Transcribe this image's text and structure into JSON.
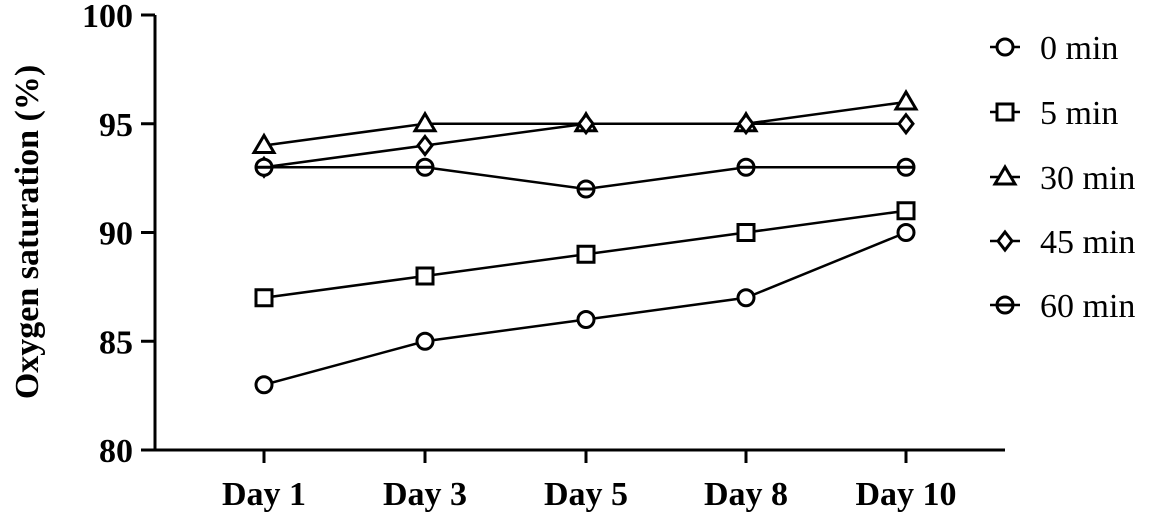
{
  "chart_data": {
    "type": "line",
    "title": "",
    "xlabel": "",
    "ylabel": "Oxygen saturation (%)",
    "categories": [
      "Day 1",
      "Day 3",
      "Day 5",
      "Day 8",
      "Day 10"
    ],
    "ylim": [
      80,
      100
    ],
    "yticks": [
      "80",
      "85",
      "90",
      "95",
      "100"
    ],
    "grid": false,
    "legend_position": "right",
    "series": [
      {
        "name": "0 min",
        "marker": "circle",
        "values": [
          83,
          85,
          86,
          87,
          90
        ]
      },
      {
        "name": "5 min",
        "marker": "square",
        "values": [
          87,
          88,
          89,
          90,
          91
        ]
      },
      {
        "name": "30 min",
        "marker": "triangle",
        "values": [
          94,
          95,
          95,
          95,
          96
        ]
      },
      {
        "name": "45 min",
        "marker": "diamond",
        "values": [
          93,
          94,
          95,
          95,
          95
        ]
      },
      {
        "name": "60 min",
        "marker": "circle-barred",
        "values": [
          93,
          93,
          92,
          93,
          93
        ]
      }
    ],
    "colors": {
      "line": "#000000",
      "marker_fill": "#ffffff"
    }
  }
}
